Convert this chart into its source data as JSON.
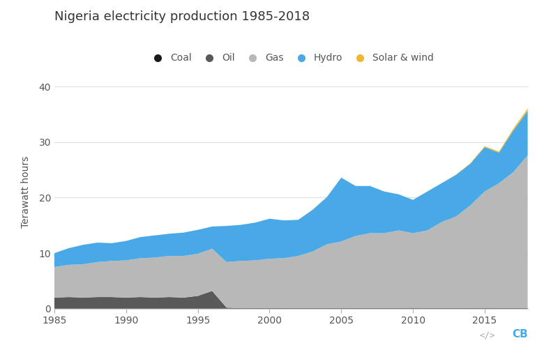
{
  "title": "Nigeria electricity production 1985-2018",
  "ylabel": "Terawatt hours",
  "years": [
    1985,
    1986,
    1987,
    1988,
    1989,
    1990,
    1991,
    1992,
    1993,
    1994,
    1995,
    1996,
    1997,
    1998,
    1999,
    2000,
    2001,
    2002,
    2003,
    2004,
    2005,
    2006,
    2007,
    2008,
    2009,
    2010,
    2011,
    2012,
    2013,
    2014,
    2015,
    2016,
    2017,
    2018
  ],
  "coal": [
    0.0,
    0.0,
    0.0,
    0.0,
    0.0,
    0.0,
    0.0,
    0.0,
    0.0,
    0.0,
    0.0,
    0.0,
    0.0,
    0.0,
    0.0,
    0.0,
    0.0,
    0.0,
    0.0,
    0.0,
    0.0,
    0.0,
    0.0,
    0.0,
    0.0,
    0.0,
    0.0,
    0.0,
    0.0,
    0.0,
    0.0,
    0.0,
    0.0,
    0.0
  ],
  "oil": [
    2.0,
    2.1,
    2.0,
    2.1,
    2.1,
    2.0,
    2.1,
    2.0,
    2.1,
    2.0,
    2.3,
    3.2,
    0.2,
    0.1,
    0.1,
    0.1,
    0.1,
    0.1,
    0.1,
    0.1,
    0.1,
    0.1,
    0.1,
    0.1,
    0.1,
    0.1,
    0.1,
    0.1,
    0.1,
    0.1,
    0.1,
    0.1,
    0.1,
    0.1
  ],
  "gas": [
    5.5,
    5.8,
    6.0,
    6.3,
    6.5,
    6.7,
    7.0,
    7.2,
    7.4,
    7.5,
    7.6,
    7.6,
    8.2,
    8.5,
    8.6,
    8.9,
    9.0,
    9.4,
    10.2,
    11.5,
    12.0,
    13.0,
    13.5,
    13.5,
    14.0,
    13.5,
    14.0,
    15.5,
    16.5,
    18.5,
    21.0,
    22.5,
    24.5,
    27.5
  ],
  "hydro": [
    2.5,
    3.0,
    3.5,
    3.5,
    3.2,
    3.5,
    3.8,
    4.0,
    4.0,
    4.2,
    4.3,
    4.0,
    6.5,
    6.5,
    6.8,
    7.2,
    6.8,
    6.5,
    7.5,
    8.5,
    11.5,
    9.0,
    8.5,
    7.5,
    6.5,
    6.0,
    7.0,
    7.0,
    7.5,
    7.5,
    8.0,
    5.5,
    7.5,
    8.0
  ],
  "solar_wind": [
    0.0,
    0.0,
    0.0,
    0.0,
    0.0,
    0.0,
    0.0,
    0.0,
    0.0,
    0.0,
    0.0,
    0.0,
    0.0,
    0.0,
    0.0,
    0.0,
    0.0,
    0.0,
    0.0,
    0.0,
    0.0,
    0.0,
    0.0,
    0.0,
    0.0,
    0.0,
    0.0,
    0.0,
    0.05,
    0.1,
    0.15,
    0.2,
    0.3,
    0.45
  ],
  "colors": {
    "coal": "#1a1a1a",
    "oil": "#595959",
    "gas": "#b8b8b8",
    "hydro": "#48a9e6",
    "solar_wind": "#f0b830"
  },
  "legend_labels": [
    "Coal",
    "Oil",
    "Gas",
    "Hydro",
    "Solar & wind"
  ],
  "ylim": [
    0,
    42
  ],
  "yticks": [
    0,
    10,
    20,
    30,
    40
  ],
  "xlim": [
    1985,
    2018
  ],
  "xticks": [
    1985,
    1990,
    1995,
    2000,
    2005,
    2010,
    2015
  ],
  "background_color": "#ffffff",
  "title_fontsize": 13,
  "legend_fontsize": 10,
  "ylabel_fontsize": 10,
  "tick_fontsize": 10
}
